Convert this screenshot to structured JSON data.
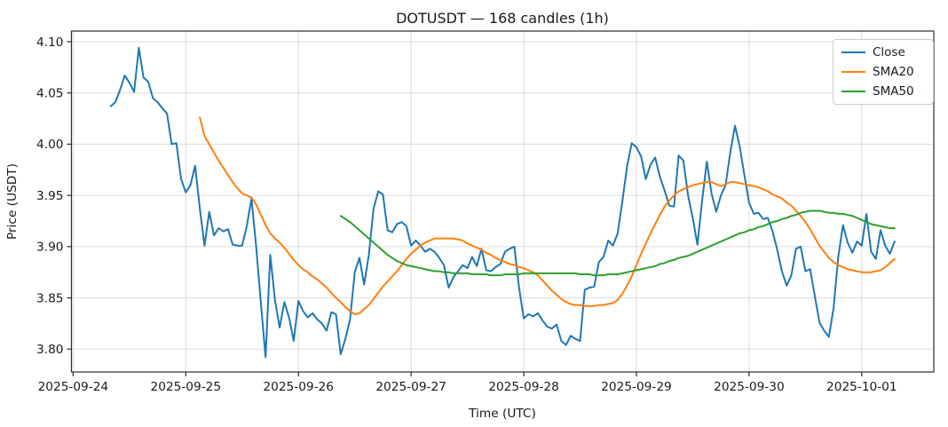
{
  "chart_data": {
    "type": "line",
    "title": "DOTUSDT — 168 candles (1h)",
    "xlabel": "Time (UTC)",
    "ylabel": "Price (USDT)",
    "grid": true,
    "legend_position": "upper right",
    "x_unit": "hours since 2025-09-24 00:00 UTC",
    "x_axis_range": [
      -0.35,
      183.35
    ],
    "y_axis_range": [
      3.7777,
      4.1104
    ],
    "x_ticks": [
      {
        "hour": 0,
        "label": "2025-09-24"
      },
      {
        "hour": 24,
        "label": "2025-09-25"
      },
      {
        "hour": 48,
        "label": "2025-09-26"
      },
      {
        "hour": 72,
        "label": "2025-09-27"
      },
      {
        "hour": 96,
        "label": "2025-09-28"
      },
      {
        "hour": 120,
        "label": "2025-09-29"
      },
      {
        "hour": 144,
        "label": "2025-09-30"
      },
      {
        "hour": 168,
        "label": "2025-10-01"
      }
    ],
    "y_ticks": [
      {
        "value": 3.8,
        "label": "3.80"
      },
      {
        "value": 3.85,
        "label": "3.85"
      },
      {
        "value": 3.9,
        "label": "3.90"
      },
      {
        "value": 3.95,
        "label": "3.95"
      },
      {
        "value": 4.0,
        "label": "4.00"
      },
      {
        "value": 4.05,
        "label": "4.05"
      },
      {
        "value": 4.1,
        "label": "4.10"
      }
    ],
    "series": [
      {
        "name": "Close",
        "color": "#1f77b4",
        "start_hour": 8,
        "step_hours": 1,
        "values": [
          4.037,
          4.041,
          4.053,
          4.067,
          4.06,
          4.051,
          4.094,
          4.065,
          4.061,
          4.045,
          4.041,
          4.035,
          4.03,
          4.0,
          4.001,
          3.966,
          3.953,
          3.96,
          3.979,
          3.937,
          3.901,
          3.934,
          3.911,
          3.918,
          3.915,
          3.917,
          3.902,
          3.901,
          3.901,
          3.92,
          3.947,
          3.9,
          3.845,
          3.792,
          3.892,
          3.848,
          3.821,
          3.846,
          3.831,
          3.808,
          3.847,
          3.837,
          3.831,
          3.835,
          3.829,
          3.825,
          3.818,
          3.836,
          3.834,
          3.795,
          3.81,
          3.829,
          3.875,
          3.889,
          3.863,
          3.892,
          3.937,
          3.954,
          3.951,
          3.916,
          3.914,
          3.922,
          3.924,
          3.92,
          3.901,
          3.906,
          3.901,
          3.895,
          3.898,
          3.895,
          3.889,
          3.882,
          3.86,
          3.87,
          3.876,
          3.882,
          3.879,
          3.89,
          3.881,
          3.898,
          3.877,
          3.876,
          3.88,
          3.883,
          3.895,
          3.898,
          3.9,
          3.86,
          3.83,
          3.834,
          3.832,
          3.835,
          3.828,
          3.822,
          3.82,
          3.824,
          3.808,
          3.804,
          3.813,
          3.81,
          3.808,
          3.858,
          3.86,
          3.861,
          3.885,
          3.89,
          3.906,
          3.901,
          3.913,
          3.944,
          3.978,
          4.001,
          3.997,
          3.988,
          3.966,
          3.98,
          3.987,
          3.968,
          3.955,
          3.94,
          3.939,
          3.989,
          3.984,
          3.95,
          3.928,
          3.902,
          3.945,
          3.983,
          3.952,
          3.934,
          3.95,
          3.96,
          3.992,
          4.018,
          3.998,
          3.97,
          3.943,
          3.932,
          3.933,
          3.927,
          3.928,
          3.915,
          3.897,
          3.876,
          3.862,
          3.872,
          3.898,
          3.9,
          3.876,
          3.878,
          3.852,
          3.826,
          3.818,
          3.812,
          3.84,
          3.89,
          3.921,
          3.904,
          3.894,
          3.905,
          3.901,
          3.932,
          3.895,
          3.888,
          3.916,
          3.901,
          3.893,
          3.905
        ]
      },
      {
        "name": "SMA20",
        "color": "#ff7f0e",
        "start_hour": 27,
        "step_hours": 1,
        "values": [
          4.026,
          4.008,
          4.0,
          3.992,
          3.984,
          3.977,
          3.97,
          3.963,
          3.957,
          3.952,
          3.95,
          3.948,
          3.941,
          3.931,
          3.921,
          3.913,
          3.908,
          3.904,
          3.899,
          3.893,
          3.887,
          3.882,
          3.878,
          3.875,
          3.871,
          3.868,
          3.864,
          3.86,
          3.855,
          3.85,
          3.846,
          3.841,
          3.837,
          3.834,
          3.835,
          3.839,
          3.843,
          3.849,
          3.855,
          3.861,
          3.866,
          3.871,
          3.876,
          3.882,
          3.888,
          3.893,
          3.897,
          3.901,
          3.904,
          3.906,
          3.908,
          3.908,
          3.908,
          3.908,
          3.908,
          3.907,
          3.906,
          3.903,
          3.901,
          3.899,
          3.897,
          3.894,
          3.892,
          3.889,
          3.887,
          3.885,
          3.883,
          3.882,
          3.88,
          3.879,
          3.877,
          3.875,
          3.872,
          3.867,
          3.862,
          3.857,
          3.853,
          3.849,
          3.846,
          3.844,
          3.843,
          3.843,
          3.842,
          3.842,
          3.842,
          3.843,
          3.843,
          3.844,
          3.845,
          3.848,
          3.854,
          3.862,
          3.871,
          3.882,
          3.893,
          3.903,
          3.913,
          3.922,
          3.931,
          3.939,
          3.945,
          3.95,
          3.954,
          3.956,
          3.958,
          3.96,
          3.961,
          3.962,
          3.963,
          3.963,
          3.961,
          3.959,
          3.961,
          3.963,
          3.963,
          3.962,
          3.961,
          3.96,
          3.959,
          3.958,
          3.956,
          3.954,
          3.951,
          3.949,
          3.947,
          3.943,
          3.94,
          3.935,
          3.93,
          3.924,
          3.917,
          3.909,
          3.901,
          3.895,
          3.889,
          3.885,
          3.882,
          3.88,
          3.878,
          3.877,
          3.876,
          3.875,
          3.875,
          3.875,
          3.876,
          3.877,
          3.88,
          3.884,
          3.888
        ]
      },
      {
        "name": "SMA50",
        "color": "#2ca02c",
        "start_hour": 57,
        "step_hours": 1,
        "values": [
          3.93,
          3.927,
          3.924,
          3.92,
          3.916,
          3.912,
          3.908,
          3.904,
          3.9,
          3.896,
          3.892,
          3.889,
          3.886,
          3.884,
          3.882,
          3.881,
          3.88,
          3.879,
          3.878,
          3.877,
          3.876,
          3.876,
          3.875,
          3.875,
          3.874,
          3.874,
          3.874,
          3.874,
          3.873,
          3.873,
          3.873,
          3.873,
          3.872,
          3.872,
          3.872,
          3.873,
          3.873,
          3.873,
          3.873,
          3.874,
          3.874,
          3.874,
          3.874,
          3.874,
          3.874,
          3.874,
          3.874,
          3.874,
          3.874,
          3.874,
          3.874,
          3.873,
          3.873,
          3.873,
          3.872,
          3.872,
          3.872,
          3.873,
          3.873,
          3.873,
          3.874,
          3.875,
          3.876,
          3.877,
          3.878,
          3.879,
          3.88,
          3.881,
          3.883,
          3.884,
          3.886,
          3.887,
          3.889,
          3.89,
          3.891,
          3.893,
          3.895,
          3.897,
          3.899,
          3.901,
          3.903,
          3.905,
          3.907,
          3.909,
          3.911,
          3.913,
          3.914,
          3.916,
          3.917,
          3.919,
          3.92,
          3.922,
          3.924,
          3.925,
          3.927,
          3.928,
          3.93,
          3.931,
          3.933,
          3.934,
          3.935,
          3.935,
          3.935,
          3.934,
          3.933,
          3.933,
          3.932,
          3.932,
          3.931,
          3.93,
          3.928,
          3.926,
          3.924,
          3.922,
          3.921,
          3.92,
          3.919,
          3.918,
          3.918
        ]
      }
    ],
    "style": {
      "grid_color": "#dcdcdc",
      "spine_color": "#2b2b2b",
      "text_color": "#1a1a1a",
      "background": "#ffffff",
      "line_width": 2
    }
  }
}
